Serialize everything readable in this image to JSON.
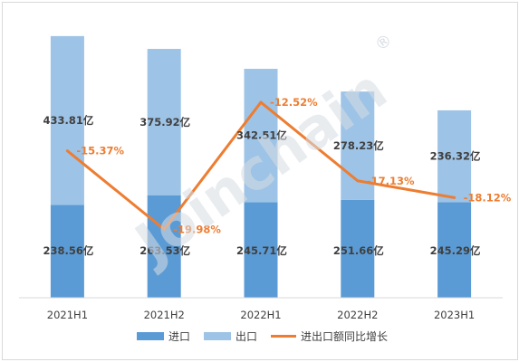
{
  "chart_data": {
    "type": "bar",
    "stacked": true,
    "categories": [
      "2021H1",
      "2021H2",
      "2022H1",
      "2022H2",
      "2023H1"
    ],
    "series": [
      {
        "name": "进口",
        "kind": "bar",
        "color": "#5b9bd5",
        "values": [
          238.56,
          263.53,
          245.71,
          251.66,
          245.29
        ],
        "labels": [
          "238.56亿",
          "263.53亿",
          "245.71亿",
          "251.66亿",
          "245.29亿"
        ]
      },
      {
        "name": "出口",
        "kind": "bar",
        "color": "#9dc3e6",
        "values": [
          433.81,
          375.92,
          342.51,
          278.23,
          236.32
        ],
        "labels": [
          "433.81亿",
          "375.92亿",
          "342.51亿",
          "278.23亿",
          "236.32亿"
        ]
      },
      {
        "name": "进出口额同比增长",
        "kind": "line",
        "color": "#ed7d31",
        "values": [
          -15.37,
          -19.98,
          -12.52,
          -17.13,
          -18.12
        ],
        "labels": [
          "-15.37%",
          "-19.98%",
          "-12.52%",
          "-17.13%",
          "-18.12%"
        ]
      }
    ],
    "ylim": [
      0,
      700
    ],
    "y2lim": [
      -24,
      -8
    ],
    "grid": false,
    "legend_position": "bottom"
  },
  "watermark": {
    "text": "Joinchain",
    "mark": "®"
  }
}
